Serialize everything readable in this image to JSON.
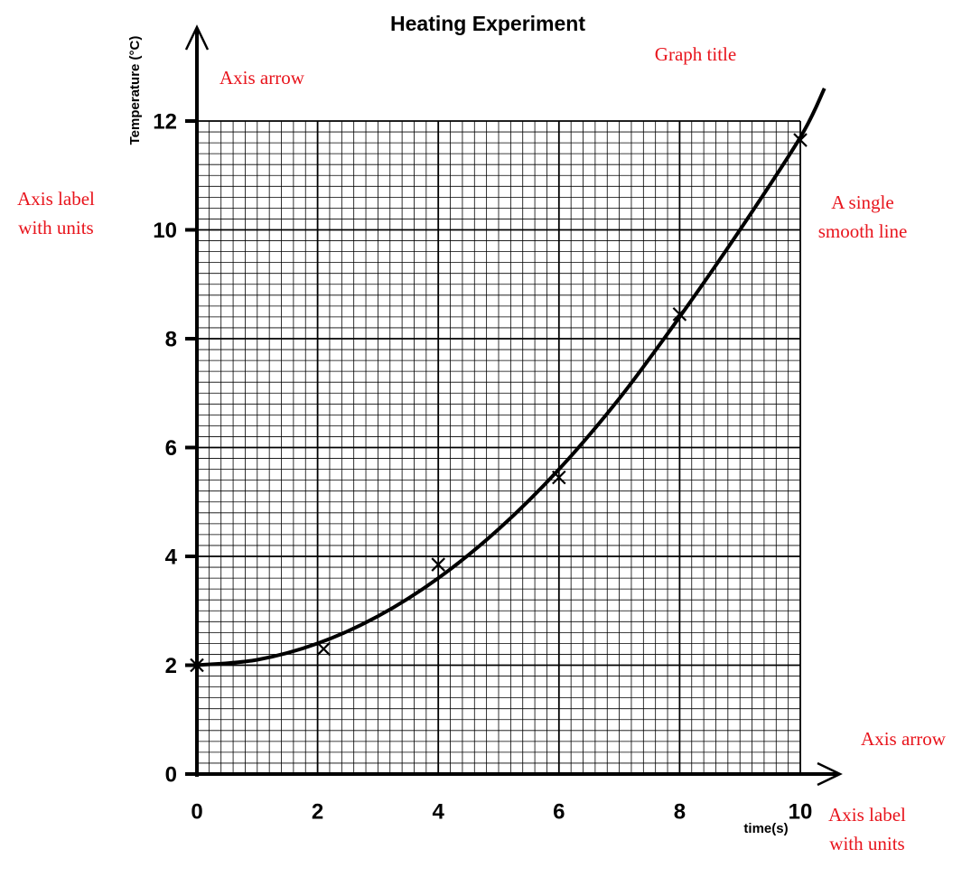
{
  "chart_data": {
    "type": "scatter",
    "title": "Heating Experiment",
    "x_label": "time(s)",
    "y_label": "Temperature (°C)",
    "xlim": [
      0,
      10
    ],
    "ylim": [
      0,
      12
    ],
    "xticks": [
      0,
      2,
      4,
      6,
      8,
      10
    ],
    "yticks": [
      0,
      2,
      4,
      6,
      8,
      10,
      12
    ],
    "grid": true,
    "series": [
      {
        "color": "#000000",
        "marker": "x",
        "x": [
          0,
          2.1,
          4,
          6,
          8,
          10
        ],
        "values": [
          2,
          2.3,
          3.85,
          5.45,
          8.45,
          11.65
        ]
      },
      {
        "color": "#000000",
        "line": true,
        "x": [
          0,
          1,
          2,
          3,
          4,
          5,
          6,
          7,
          8,
          9,
          10,
          10.4
        ],
        "values": [
          2,
          2.1,
          2.4,
          2.9,
          3.6,
          4.5,
          5.6,
          6.9,
          8.4,
          10,
          11.7,
          12.6
        ]
      }
    ],
    "annotations": [
      {
        "lines": [
          "Axis arrow"
        ]
      },
      {
        "lines": [
          "Graph title"
        ]
      },
      {
        "lines": [
          "Axis label",
          "with units"
        ]
      },
      {
        "lines": [
          "A single",
          "smooth line"
        ]
      },
      {
        "lines": [
          "Axis arrow"
        ]
      },
      {
        "lines": [
          "Axis label",
          "with units"
        ]
      }
    ]
  }
}
